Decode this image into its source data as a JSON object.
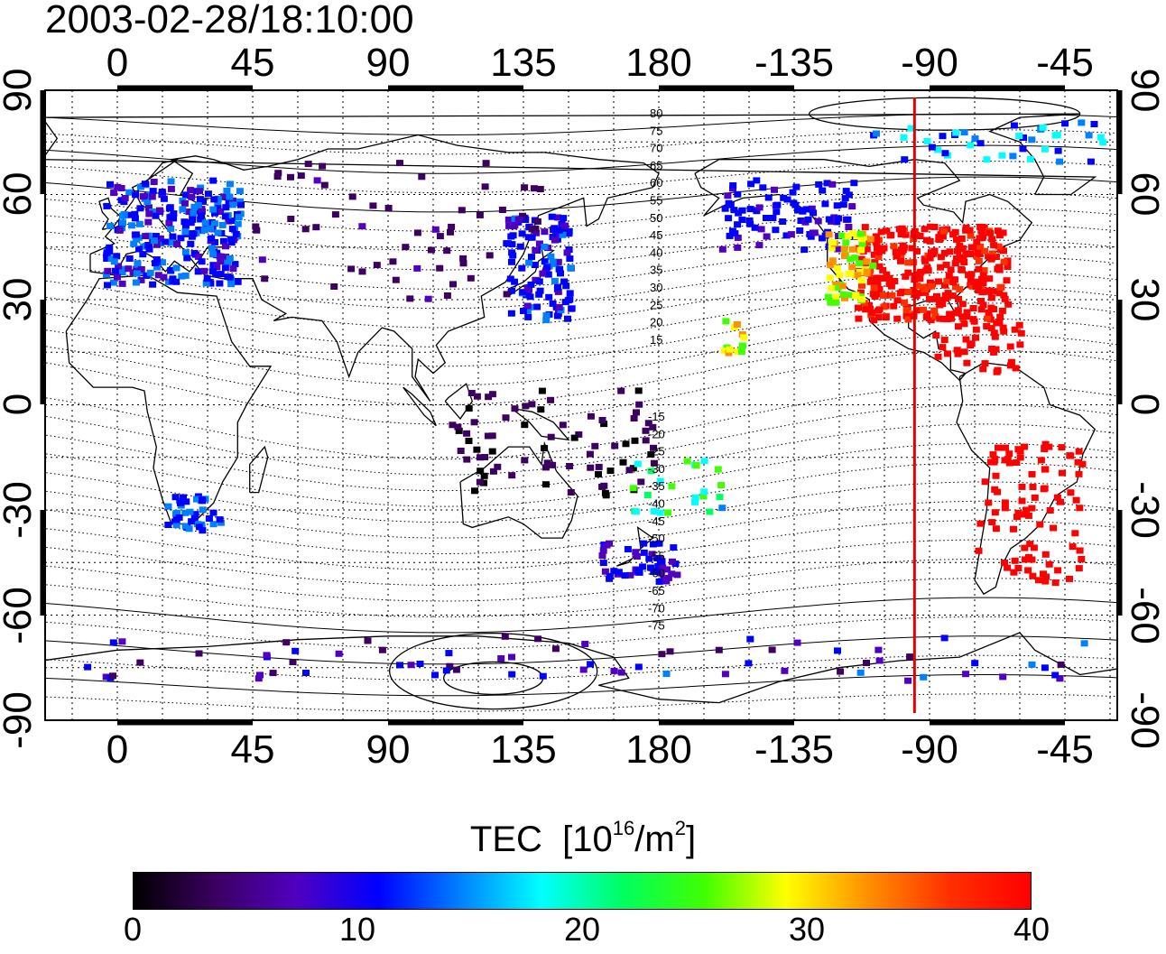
{
  "title": "2003-02-28/18:10:00",
  "map": {
    "longitude_labels": [
      "0",
      "45",
      "90",
      "135",
      "180",
      "-135",
      "-90",
      "-45"
    ],
    "latitude_labels": [
      "90",
      "60",
      "30",
      "0",
      "-30",
      "-60",
      "-90"
    ],
    "contour_labels_north": [
      "80",
      "75",
      "70",
      "65",
      "60",
      "55",
      "50",
      "45",
      "40",
      "35",
      "30",
      "25",
      "20",
      "15"
    ],
    "contour_labels_south": [
      "-15",
      "-20",
      "-25",
      "-30",
      "-35",
      "-40",
      "-45",
      "-50",
      "-55",
      "-60",
      "-65",
      "-70",
      "-75"
    ],
    "grid": "dotted, every 15 degrees",
    "marker_line": {
      "longitude": -95,
      "color": "#e00000"
    }
  },
  "colorbar": {
    "title": "TEC",
    "unit_open": "[10",
    "unit_exp": "16",
    "unit_mid": "/m",
    "unit_exp2": "2",
    "unit_close": "]",
    "tick_labels": [
      "0",
      "10",
      "20",
      "30",
      "40"
    ],
    "range": [
      0,
      40
    ],
    "colors": [
      "#000000",
      "#3b0060",
      "#5000c0",
      "#0000ff",
      "#0080ff",
      "#00ffff",
      "#00ff60",
      "#40ff00",
      "#ffff00",
      "#ff9000",
      "#ff3000",
      "#ff0000"
    ]
  }
}
